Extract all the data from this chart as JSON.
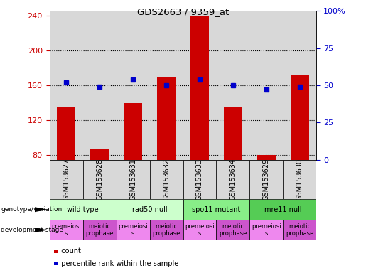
{
  "title": "GDS2663 / 9359_at",
  "samples": [
    "GSM153627",
    "GSM153628",
    "GSM153631",
    "GSM153632",
    "GSM153633",
    "GSM153634",
    "GSM153629",
    "GSM153630"
  ],
  "counts": [
    136,
    88,
    140,
    170,
    240,
    136,
    80,
    172
  ],
  "percentile_ranks": [
    52,
    49,
    54,
    50,
    54,
    50,
    47,
    49
  ],
  "ylim_left": [
    75,
    245
  ],
  "ylim_right": [
    0,
    100
  ],
  "left_ticks": [
    80,
    120,
    160,
    200,
    240
  ],
  "right_ticks": [
    0,
    25,
    50,
    75,
    100
  ],
  "right_tick_labels": [
    "0",
    "25",
    "50",
    "75",
    "100%"
  ],
  "bar_color": "#cc0000",
  "dot_color": "#0000cc",
  "bar_bottom": 75,
  "plot_bg": "#d8d8d8",
  "genotype_groups": [
    {
      "label": "wild type",
      "start": 0,
      "end": 2,
      "color": "#ccffcc"
    },
    {
      "label": "rad50 null",
      "start": 2,
      "end": 4,
      "color": "#ccffcc"
    },
    {
      "label": "spo11 mutant",
      "start": 4,
      "end": 6,
      "color": "#88ee88"
    },
    {
      "label": "mre11 null",
      "start": 6,
      "end": 8,
      "color": "#55cc55"
    }
  ],
  "dev_stage_groups": [
    {
      "label": "premeiosi\ns",
      "start": 0,
      "end": 1,
      "color": "#ee88ee"
    },
    {
      "label": "meiotic\nprophase",
      "start": 1,
      "end": 2,
      "color": "#cc55cc"
    },
    {
      "label": "premeiosi\ns",
      "start": 2,
      "end": 3,
      "color": "#ee88ee"
    },
    {
      "label": "meiotic\nprophase",
      "start": 3,
      "end": 4,
      "color": "#cc55cc"
    },
    {
      "label": "premeiosi\ns",
      "start": 4,
      "end": 5,
      "color": "#ee88ee"
    },
    {
      "label": "meiotic\nprophase",
      "start": 5,
      "end": 6,
      "color": "#cc55cc"
    },
    {
      "label": "premeiosi\ns",
      "start": 6,
      "end": 7,
      "color": "#ee88ee"
    },
    {
      "label": "meiotic\nprophase",
      "start": 7,
      "end": 8,
      "color": "#cc55cc"
    }
  ],
  "tick_label_color_left": "#cc0000",
  "tick_label_color_right": "#0000cc",
  "label_fontsize": 7,
  "tick_fontsize": 8,
  "xticklabel_fontsize": 7,
  "genotype_fontsize": 7,
  "dev_fontsize": 6
}
